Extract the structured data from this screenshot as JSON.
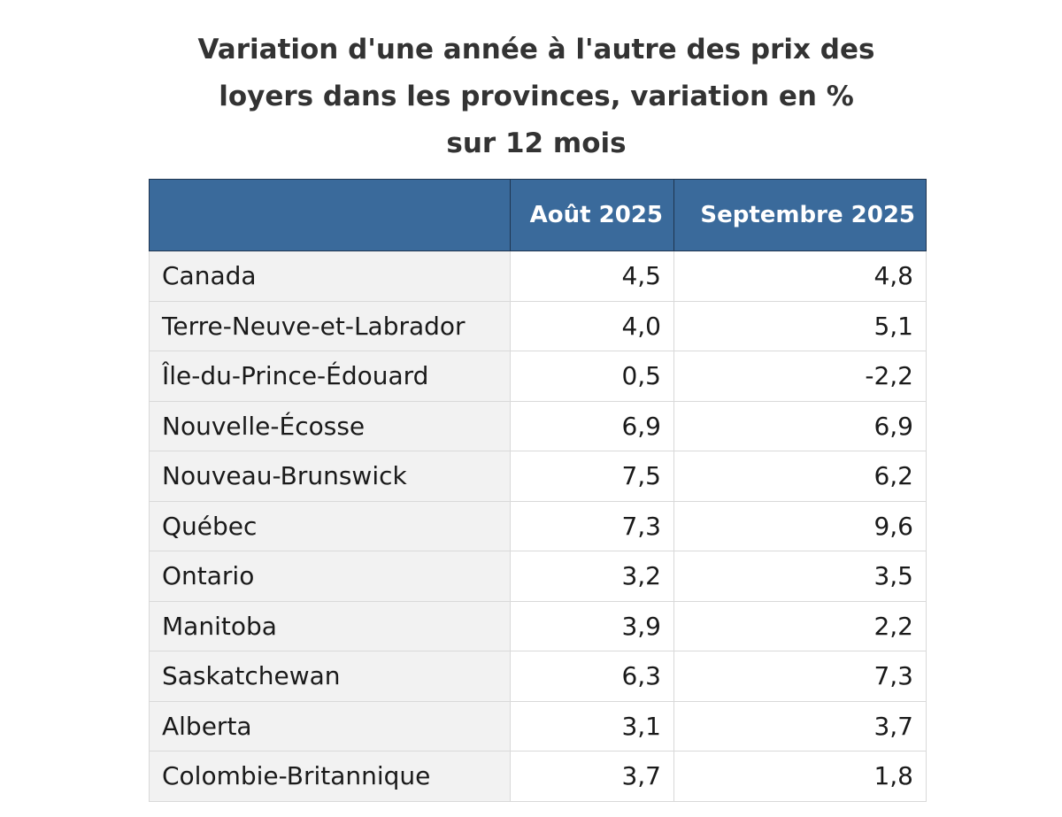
{
  "chart_data": {
    "type": "table",
    "title_lines": [
      "Variation d'une année à l'autre des prix des",
      "loyers dans les provinces, variation en %",
      "sur 12 mois"
    ],
    "columns": [
      "",
      "Août 2025",
      "Septembre 2025"
    ],
    "rows": [
      {
        "region": "Canada",
        "aug": "4,5",
        "sep": "4,8"
      },
      {
        "region": "Terre-Neuve-et-Labrador",
        "aug": "4,0",
        "sep": "5,1"
      },
      {
        "region": "Île-du-Prince-Édouard",
        "aug": "0,5",
        "sep": "-2,2"
      },
      {
        "region": "Nouvelle-Écosse",
        "aug": "6,9",
        "sep": "6,9"
      },
      {
        "region": "Nouveau-Brunswick",
        "aug": "7,5",
        "sep": "6,2"
      },
      {
        "region": "Québec",
        "aug": "7,3",
        "sep": "9,6"
      },
      {
        "region": "Ontario",
        "aug": "3,2",
        "sep": "3,5"
      },
      {
        "region": "Manitoba",
        "aug": "3,9",
        "sep": "2,2"
      },
      {
        "region": "Saskatchewan",
        "aug": "6,3",
        "sep": "7,3"
      },
      {
        "region": "Alberta",
        "aug": "3,1",
        "sep": "3,7"
      },
      {
        "region": "Colombie-Britannique",
        "aug": "3,7",
        "sep": "1,8"
      }
    ],
    "colors": {
      "header_bg": "#3a6a9b",
      "header_text": "#ffffff",
      "name_cell_bg": "#f2f2f2"
    }
  }
}
